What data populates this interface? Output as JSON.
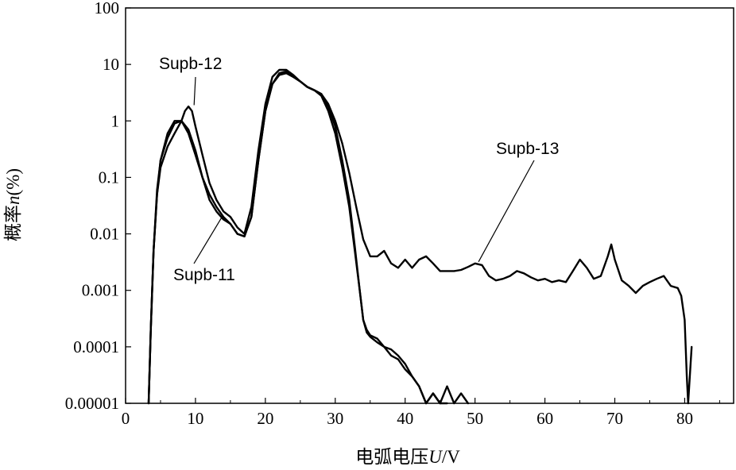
{
  "chart_data": {
    "type": "line",
    "title": "",
    "xlabel_prefix": "电弧电压",
    "xlabel_var": "U",
    "xlabel_unit": "/V",
    "ylabel_prefix": "概率",
    "ylabel_var": "n",
    "ylabel_unit": "(%)",
    "xlim": [
      0,
      87
    ],
    "ylim": [
      1e-05,
      100
    ],
    "yscale": "log",
    "grid": false,
    "x_ticks": [
      0,
      10,
      20,
      30,
      40,
      50,
      60,
      70,
      80
    ],
    "x_tick_labels": [
      "0",
      "10",
      "20",
      "30",
      "40",
      "50",
      "60",
      "70",
      "80"
    ],
    "y_ticks": [
      1e-05,
      0.0001,
      0.001,
      0.01,
      0.1,
      1,
      10,
      100
    ],
    "y_tick_labels": [
      "0.00001",
      "0.0001",
      "0.001",
      "0.01",
      "0.1",
      "1",
      "10",
      "100"
    ],
    "series": [
      {
        "name": "Supb-11",
        "x": [
          3.3,
          3.6,
          4.0,
          4.5,
          5.0,
          6.0,
          7.0,
          8.0,
          9.0,
          10.0,
          11.0,
          12.0,
          13.0,
          14.0,
          15.0,
          16.0,
          17.0,
          18.0,
          19.0,
          20.0,
          21.0,
          22.0,
          23.0,
          24.0,
          25.0,
          26.0,
          27.0,
          28.0,
          29.0,
          30.0,
          31.0,
          32.0,
          32.8,
          33.5,
          34.0,
          34.5,
          35.0,
          36.0,
          37.0,
          38.0,
          39.0,
          40.0,
          41.0,
          42.0,
          43.0,
          44.0,
          45.0,
          46.0,
          47.0,
          48.0,
          49.0
        ],
        "y": [
          1e-05,
          0.0002,
          0.005,
          0.05,
          0.2,
          0.5,
          0.9,
          1.0,
          0.6,
          0.25,
          0.1,
          0.04,
          0.025,
          0.018,
          0.015,
          0.01,
          0.009,
          0.02,
          0.2,
          1.5,
          4.5,
          6.5,
          7.0,
          6.0,
          5.0,
          4.0,
          3.5,
          2.8,
          1.5,
          0.6,
          0.15,
          0.03,
          0.005,
          0.001,
          0.0003,
          0.00018,
          0.00015,
          0.00012,
          0.0001,
          7e-05,
          6e-05,
          4e-05,
          3e-05,
          2e-05,
          1e-05,
          1.5e-05,
          1e-05,
          2e-05,
          1e-05,
          1.5e-05,
          1e-05
        ]
      },
      {
        "name": "Supb-12",
        "x": [
          3.3,
          3.6,
          4.0,
          4.5,
          5.0,
          6.0,
          7.0,
          8.0,
          8.5,
          9.0,
          9.5,
          10.0,
          11.0,
          12.0,
          13.0,
          14.0,
          15.0,
          16.0,
          17.0,
          18.0,
          19.0,
          20.0,
          21.0,
          22.0,
          23.0,
          24.0,
          25.0,
          26.0,
          27.0,
          28.0,
          29.0,
          30.0,
          31.0,
          32.0,
          32.8,
          33.5,
          34.0,
          34.5,
          35.0,
          36.0,
          37.0,
          38.0,
          39.0,
          40.0,
          41.0,
          42.0,
          43.0,
          44.0,
          45.0,
          46.0
        ],
        "y": [
          1e-05,
          0.0002,
          0.005,
          0.05,
          0.15,
          0.35,
          0.6,
          1.0,
          1.5,
          1.8,
          1.5,
          0.8,
          0.25,
          0.08,
          0.04,
          0.025,
          0.02,
          0.013,
          0.01,
          0.03,
          0.3,
          2.0,
          6.0,
          8.0,
          8.0,
          6.5,
          5.0,
          4.0,
          3.5,
          3.0,
          1.8,
          0.8,
          0.2,
          0.04,
          0.006,
          0.001,
          0.0003,
          0.0002,
          0.00016,
          0.00014,
          0.0001,
          9e-05,
          7e-05,
          5e-05,
          3e-05,
          2e-05,
          1e-05,
          1.5e-05,
          1e-05,
          1e-05
        ]
      },
      {
        "name": "Supb-13",
        "x": [
          3.3,
          3.6,
          4.0,
          4.5,
          5.0,
          6.0,
          7.0,
          8.0,
          9.0,
          10.0,
          11.0,
          12.0,
          13.0,
          14.0,
          15.0,
          16.0,
          17.0,
          18.0,
          19.0,
          20.0,
          21.0,
          22.0,
          23.0,
          24.0,
          25.0,
          26.0,
          27.0,
          28.0,
          29.0,
          30.0,
          31.0,
          32.0,
          33.0,
          34.0,
          35.0,
          36.0,
          37.0,
          38.0,
          39.0,
          40.0,
          41.0,
          42.0,
          43.0,
          44.0,
          45.0,
          46.0,
          47.0,
          48.0,
          49.0,
          50.0,
          51.0,
          52.0,
          53.0,
          54.0,
          55.0,
          56.0,
          57.0,
          58.0,
          59.0,
          60.0,
          61.0,
          62.0,
          63.0,
          64.0,
          65.0,
          66.0,
          67.0,
          68.0,
          69.0,
          69.5,
          70.0,
          71.0,
          72.0,
          73.0,
          74.0,
          75.0,
          76.0,
          77.0,
          78.0,
          79.0,
          79.5,
          80.0,
          80.3,
          80.5,
          81.0
        ],
        "y": [
          1e-05,
          0.0002,
          0.005,
          0.06,
          0.2,
          0.6,
          1.0,
          1.0,
          0.7,
          0.3,
          0.1,
          0.05,
          0.03,
          0.02,
          0.015,
          0.01,
          0.009,
          0.02,
          0.2,
          1.5,
          4.5,
          7.0,
          7.5,
          6.0,
          5.0,
          4.0,
          3.5,
          3.0,
          2.0,
          1.0,
          0.4,
          0.12,
          0.03,
          0.008,
          0.004,
          0.004,
          0.005,
          0.003,
          0.0025,
          0.0035,
          0.0025,
          0.0035,
          0.004,
          0.003,
          0.0022,
          0.0022,
          0.0022,
          0.0023,
          0.0026,
          0.003,
          0.0028,
          0.0018,
          0.0015,
          0.0016,
          0.0018,
          0.0022,
          0.002,
          0.0017,
          0.0015,
          0.0016,
          0.0014,
          0.0015,
          0.0014,
          0.0022,
          0.0035,
          0.0025,
          0.0016,
          0.0018,
          0.004,
          0.0065,
          0.0035,
          0.0015,
          0.0012,
          0.0009,
          0.0012,
          0.0014,
          0.0016,
          0.0018,
          0.0012,
          0.0011,
          0.0008,
          0.0003,
          3e-05,
          1e-05,
          0.0001
        ]
      }
    ],
    "annotations": [
      {
        "text": "Supb-12",
        "target_series": "Supb-12",
        "point": [
          9.8,
          1.9
        ]
      },
      {
        "text": "Supb-11",
        "target_series": "Supb-11",
        "point": [
          13.8,
          0.02
        ]
      },
      {
        "text": "Supb-13",
        "target_series": "Supb-13",
        "point": [
          50.5,
          0.0032
        ]
      }
    ]
  }
}
